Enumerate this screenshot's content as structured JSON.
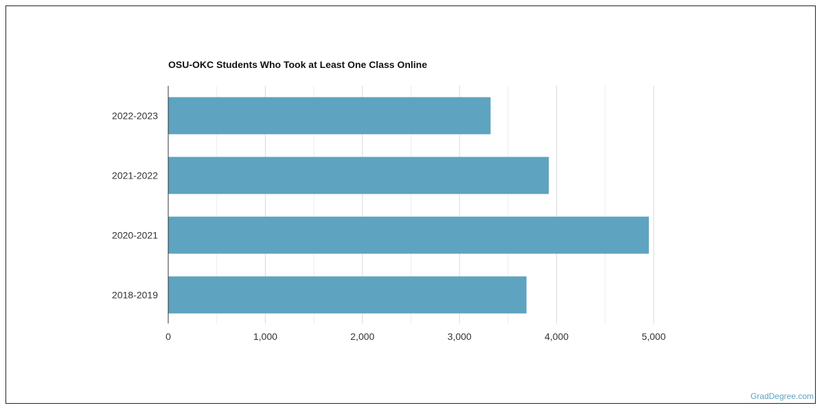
{
  "chart_data": {
    "type": "bar",
    "orientation": "horizontal",
    "title": "OSU-OKC Students Who Took at Least One Class Online",
    "xlabel": "",
    "ylabel": "",
    "categories": [
      "2022-2023",
      "2021-2022",
      "2020-2021",
      "2018-2019"
    ],
    "values": [
      3320,
      3920,
      4950,
      3690
    ],
    "xlim": [
      0,
      5000
    ],
    "x_ticks": [
      0,
      1000,
      2000,
      3000,
      4000,
      5000
    ],
    "x_tick_labels": [
      "0",
      "1,000",
      "2,000",
      "3,000",
      "4,000",
      "5,000"
    ],
    "grid": true,
    "legend": "none",
    "bar_color": "#5ea3bf",
    "grid_color": "#d9d9d9"
  },
  "watermark": "GradDegree.com"
}
